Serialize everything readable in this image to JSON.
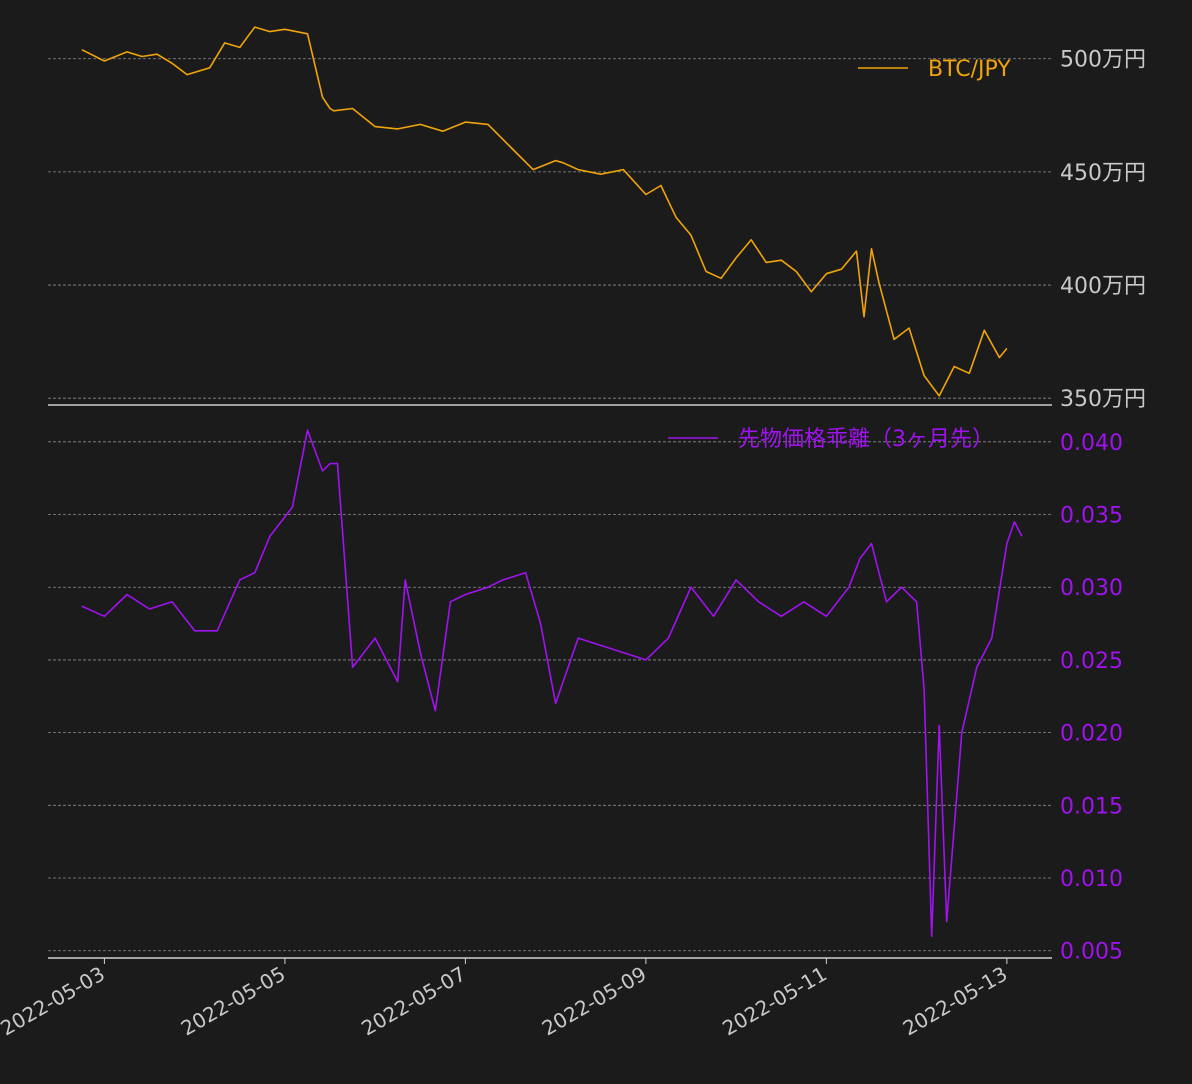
{
  "chart_data": [
    {
      "type": "line",
      "series": [
        {
          "name": "BTC/JPY",
          "color": "#f0a30a",
          "x": [
            "2022-05-02T18:00",
            "2022-05-03T00:00",
            "2022-05-03T06:00",
            "2022-05-03T10:00",
            "2022-05-03T14:00",
            "2022-05-03T18:00",
            "2022-05-03T22:00",
            "2022-05-04T04:00",
            "2022-05-04T08:00",
            "2022-05-04T12:00",
            "2022-05-04T16:00",
            "2022-05-04T20:00",
            "2022-05-05T00:00",
            "2022-05-05T06:00",
            "2022-05-05T10:00",
            "2022-05-05T12:00",
            "2022-05-05T13:00",
            "2022-05-05T18:00",
            "2022-05-06T00:00",
            "2022-05-06T06:00",
            "2022-05-06T12:00",
            "2022-05-06T18:00",
            "2022-05-07T00:00",
            "2022-05-07T06:00",
            "2022-05-07T12:00",
            "2022-05-07T18:00",
            "2022-05-08T00:00",
            "2022-05-08T02:00",
            "2022-05-08T06:00",
            "2022-05-08T12:00",
            "2022-05-08T18:00",
            "2022-05-09T00:00",
            "2022-05-09T04:00",
            "2022-05-09T08:00",
            "2022-05-09T12:00",
            "2022-05-09T16:00",
            "2022-05-09T20:00",
            "2022-05-10T00:00",
            "2022-05-10T04:00",
            "2022-05-10T08:00",
            "2022-05-10T12:00",
            "2022-05-10T16:00",
            "2022-05-10T20:00",
            "2022-05-11T00:00",
            "2022-05-11T04:00",
            "2022-05-11T08:00",
            "2022-05-11T10:00",
            "2022-05-11T12:00",
            "2022-05-11T14:00",
            "2022-05-11T18:00",
            "2022-05-11T22:00",
            "2022-05-12T02:00",
            "2022-05-12T06:00",
            "2022-05-12T10:00",
            "2022-05-12T14:00",
            "2022-05-12T18:00",
            "2022-05-12T22:00",
            "2022-05-13T00:00"
          ],
          "values": [
            5040000,
            4990000,
            5030000,
            5010000,
            5020000,
            4980000,
            4930000,
            4960000,
            5070000,
            5050000,
            5140000,
            5120000,
            5130000,
            5110000,
            4830000,
            4780000,
            4770000,
            4780000,
            4700000,
            4690000,
            4710000,
            4680000,
            4720000,
            4710000,
            4610000,
            4510000,
            4550000,
            4540000,
            4510000,
            4490000,
            4510000,
            4400000,
            4440000,
            4300000,
            4220000,
            4060000,
            4030000,
            4120000,
            4200000,
            4100000,
            4110000,
            4060000,
            3970000,
            4050000,
            4070000,
            4150000,
            3860000,
            4160000,
            4010000,
            3760000,
            3810000,
            3600000,
            3510000,
            3640000,
            3610000,
            3800000,
            3680000,
            3720000
          ]
        }
      ],
      "yaxis": {
        "ticks": [
          3500000,
          4000000,
          4500000,
          5000000
        ],
        "tick_labels": [
          "350万円",
          "400万円",
          "450万円",
          "500万円"
        ],
        "range": [
          3470000,
          5180000
        ],
        "position": "right"
      },
      "grid": true,
      "legend": "top-right"
    },
    {
      "type": "line",
      "series": [
        {
          "name": "先物価格乖離（3ヶ月先）",
          "color": "#a012ef",
          "x": [
            "2022-05-02T18:00",
            "2022-05-03T00:00",
            "2022-05-03T06:00",
            "2022-05-03T12:00",
            "2022-05-03T18:00",
            "2022-05-04T00:00",
            "2022-05-04T06:00",
            "2022-05-04T12:00",
            "2022-05-04T16:00",
            "2022-05-04T20:00",
            "2022-05-05T02:00",
            "2022-05-05T06:00",
            "2022-05-05T10:00",
            "2022-05-05T12:00",
            "2022-05-05T14:00",
            "2022-05-05T18:00",
            "2022-05-06T00:00",
            "2022-05-06T06:00",
            "2022-05-06T08:00",
            "2022-05-06T12:00",
            "2022-05-06T16:00",
            "2022-05-06T20:00",
            "2022-05-07T00:00",
            "2022-05-07T06:00",
            "2022-05-07T10:00",
            "2022-05-07T16:00",
            "2022-05-07T20:00",
            "2022-05-08T00:00",
            "2022-05-08T06:00",
            "2022-05-08T12:00",
            "2022-05-08T18:00",
            "2022-05-09T00:00",
            "2022-05-09T06:00",
            "2022-05-09T12:00",
            "2022-05-09T18:00",
            "2022-05-10T00:00",
            "2022-05-10T06:00",
            "2022-05-10T12:00",
            "2022-05-10T18:00",
            "2022-05-11T00:00",
            "2022-05-11T06:00",
            "2022-05-11T09:00",
            "2022-05-11T12:00",
            "2022-05-11T16:00",
            "2022-05-11T20:00",
            "2022-05-12T00:00",
            "2022-05-12T02:00",
            "2022-05-12T04:00",
            "2022-05-12T06:00",
            "2022-05-12T08:00",
            "2022-05-12T12:00",
            "2022-05-12T16:00",
            "2022-05-12T20:00",
            "2022-05-13T00:00",
            "2022-05-13T02:00",
            "2022-05-13T04:00"
          ],
          "values": [
            0.0287,
            0.028,
            0.0295,
            0.0285,
            0.029,
            0.027,
            0.027,
            0.0305,
            0.031,
            0.0335,
            0.0355,
            0.0408,
            0.038,
            0.0385,
            0.0385,
            0.0245,
            0.0265,
            0.0235,
            0.0305,
            0.0255,
            0.0215,
            0.029,
            0.0295,
            0.03,
            0.0305,
            0.031,
            0.0275,
            0.022,
            0.0265,
            0.026,
            0.0255,
            0.025,
            0.0265,
            0.03,
            0.028,
            0.0305,
            0.029,
            0.028,
            0.029,
            0.028,
            0.03,
            0.032,
            0.033,
            0.029,
            0.03,
            0.029,
            0.023,
            0.006,
            0.0205,
            0.007,
            0.02,
            0.0245,
            0.0265,
            0.033,
            0.0345,
            0.0335
          ]
        }
      ],
      "yaxis": {
        "ticks": [
          0.005,
          0.01,
          0.015,
          0.02,
          0.025,
          0.03,
          0.035,
          0.04
        ],
        "tick_labels": [
          "0.005",
          "0.010",
          "0.015",
          "0.020",
          "0.025",
          "0.030",
          "0.035",
          "0.040"
        ],
        "range": [
          0.0045,
          0.0415
        ],
        "position": "right",
        "color": "#a012ef"
      },
      "grid": true,
      "legend": "top-right"
    }
  ],
  "xaxis": {
    "ticks": [
      "2022-05-03",
      "2022-05-05",
      "2022-05-07",
      "2022-05-09",
      "2022-05-11",
      "2022-05-13"
    ],
    "range": [
      "2022-05-02T09:00",
      "2022-05-13T12:00"
    ]
  },
  "colors": {
    "background": "#1b1b1b",
    "grid": "#8c8c8c",
    "axis_text": "#c8c8c8",
    "axis_line": "#d0d0d0"
  }
}
